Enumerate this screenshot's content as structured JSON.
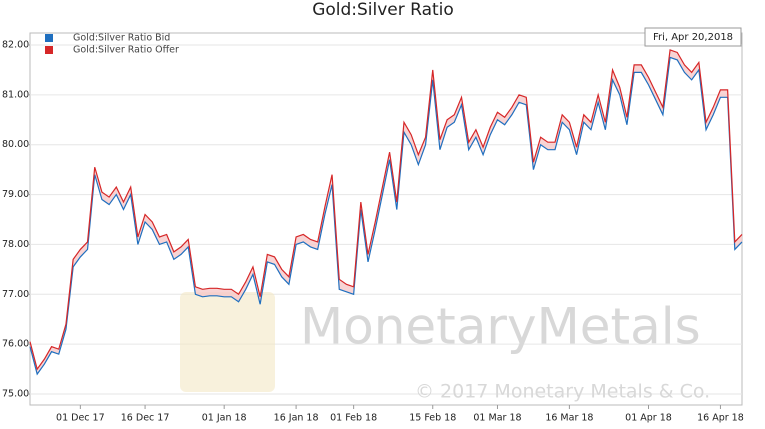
{
  "chart_data": {
    "type": "line",
    "title": "Gold:Silver Ratio",
    "date_label": "Fri, Apr 20,2018",
    "watermark": "MonetaryMetals",
    "copyright": "© 2017 Monetary Metals & Co.",
    "grid": true,
    "legend": "top-left",
    "categories": [
      null,
      null,
      null,
      null,
      null,
      null,
      null,
      "01 Dec 17",
      null,
      null,
      null,
      null,
      null,
      null,
      null,
      null,
      "16 Dec 17",
      null,
      null,
      null,
      null,
      null,
      null,
      null,
      null,
      null,
      null,
      "01 Jan 18",
      null,
      null,
      null,
      null,
      null,
      null,
      null,
      null,
      null,
      "16 Jan 18",
      null,
      null,
      null,
      null,
      null,
      null,
      null,
      "01 Feb 18",
      null,
      null,
      null,
      null,
      null,
      null,
      null,
      null,
      null,
      null,
      "15 Feb 18",
      null,
      null,
      null,
      null,
      null,
      null,
      null,
      null,
      "01 Mar 18",
      null,
      null,
      null,
      null,
      null,
      null,
      null,
      null,
      null,
      "16 Mar 18",
      null,
      null,
      null,
      null,
      null,
      null,
      null,
      null,
      null,
      null,
      "01 Apr 18",
      null,
      null,
      null,
      null,
      null,
      null,
      null,
      null,
      null,
      "16 Apr 18",
      null,
      null,
      null
    ],
    "series": [
      {
        "name": "Gold:Silver Ratio Bid",
        "color": "#1f6fbf",
        "values": [
          75.95,
          75.4,
          75.6,
          75.85,
          75.8,
          76.3,
          77.55,
          77.75,
          77.9,
          79.4,
          78.9,
          78.8,
          79.0,
          78.7,
          79.0,
          78.0,
          78.45,
          78.3,
          78.0,
          78.05,
          77.7,
          77.8,
          77.95,
          77.0,
          76.95,
          76.97,
          76.97,
          76.95,
          76.95,
          76.85,
          77.1,
          77.4,
          76.8,
          77.65,
          77.6,
          77.35,
          77.2,
          78.0,
          78.05,
          77.95,
          77.9,
          78.6,
          79.2,
          77.1,
          77.05,
          77.0,
          78.7,
          77.65,
          78.3,
          79.0,
          79.7,
          78.7,
          80.25,
          80.0,
          79.6,
          80.0,
          81.3,
          79.9,
          80.35,
          80.45,
          80.8,
          79.9,
          80.15,
          79.8,
          80.2,
          80.5,
          80.4,
          80.6,
          80.85,
          80.8,
          79.5,
          80.0,
          79.9,
          79.9,
          80.45,
          80.3,
          79.8,
          80.45,
          80.3,
          80.85,
          80.3,
          81.3,
          81.0,
          80.4,
          81.45,
          81.45,
          81.2,
          80.9,
          80.6,
          81.75,
          81.7,
          81.45,
          81.3,
          81.5,
          80.3,
          80.6,
          80.95,
          80.95,
          77.9,
          78.05
        ]
      },
      {
        "name": "Gold:Silver Ratio Offer",
        "color": "#d62728",
        "values": [
          76.05,
          75.5,
          75.7,
          75.95,
          75.9,
          76.4,
          77.7,
          77.9,
          78.05,
          79.55,
          79.05,
          78.95,
          79.15,
          78.85,
          79.15,
          78.15,
          78.6,
          78.45,
          78.15,
          78.2,
          77.85,
          77.95,
          78.1,
          77.15,
          77.1,
          77.12,
          77.12,
          77.1,
          77.1,
          77.0,
          77.25,
          77.55,
          76.95,
          77.8,
          77.75,
          77.5,
          77.35,
          78.15,
          78.2,
          78.1,
          78.05,
          78.75,
          79.4,
          77.3,
          77.2,
          77.15,
          78.85,
          77.8,
          78.45,
          79.15,
          79.85,
          78.85,
          80.45,
          80.2,
          79.8,
          80.15,
          81.5,
          80.1,
          80.5,
          80.6,
          80.95,
          80.05,
          80.3,
          79.95,
          80.35,
          80.65,
          80.55,
          80.75,
          81.0,
          80.95,
          79.65,
          80.15,
          80.05,
          80.05,
          80.6,
          80.45,
          79.95,
          80.6,
          80.45,
          81.0,
          80.45,
          81.5,
          81.15,
          80.55,
          81.6,
          81.6,
          81.35,
          81.05,
          80.75,
          81.9,
          81.85,
          81.6,
          81.45,
          81.65,
          80.45,
          80.75,
          81.1,
          81.1,
          78.05,
          78.2
        ]
      }
    ],
    "ylim": [
      74.78,
      82.24
    ],
    "yticks": [
      {
        "value": 75,
        "label": "75.00"
      },
      {
        "value": 76,
        "label": "76.00"
      },
      {
        "value": 77,
        "label": "77.00"
      },
      {
        "value": 78,
        "label": "78.00"
      },
      {
        "value": 79,
        "label": "79.00"
      },
      {
        "value": 80,
        "label": "80.00"
      },
      {
        "value": 81,
        "label": "81.00"
      },
      {
        "value": 82,
        "label": "82.00"
      }
    ]
  }
}
